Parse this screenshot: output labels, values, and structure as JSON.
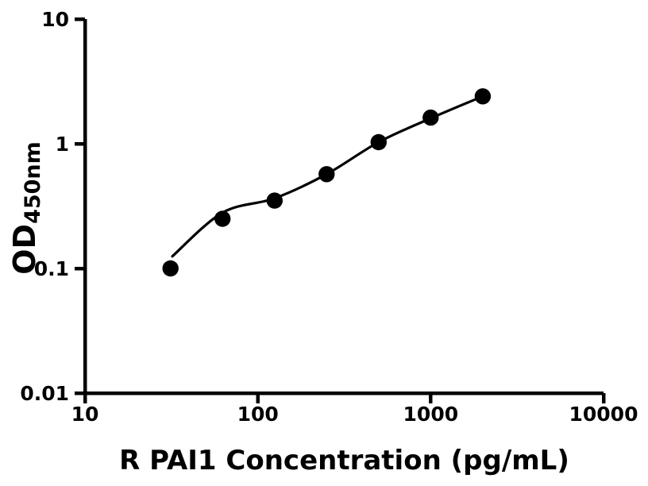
{
  "figure": {
    "background_color": "#ffffff",
    "foreground_color": "#000000"
  },
  "chart_data": {
    "type": "scatter",
    "title": "",
    "xlabel": "R PAI1 Concentration (pg/mL)",
    "ylabel_main": "OD",
    "ylabel_subscript": "450nm",
    "x_scale": "log",
    "y_scale": "log",
    "xlim": [
      10,
      10000
    ],
    "ylim": [
      0.01,
      10
    ],
    "grid": false,
    "legend": null,
    "x_ticks": [
      {
        "value": 10,
        "label": "10"
      },
      {
        "value": 100,
        "label": "100"
      },
      {
        "value": 1000,
        "label": "1000"
      },
      {
        "value": 10000,
        "label": "10000"
      }
    ],
    "y_ticks": [
      {
        "value": 10,
        "label": "10"
      },
      {
        "value": 1,
        "label": "1"
      },
      {
        "value": 0.1,
        "label": "0.1"
      },
      {
        "value": 0.01,
        "label": "0.01"
      }
    ],
    "series": [
      {
        "name": "standard-points",
        "kind": "scatter",
        "marker": "filled-circle",
        "color": "#000000",
        "x": [
          31.25,
          62.5,
          125,
          250,
          500,
          1000,
          2000
        ],
        "y": [
          0.1,
          0.25,
          0.35,
          0.57,
          1.03,
          1.62,
          2.4
        ]
      },
      {
        "name": "fit-curve",
        "kind": "line",
        "color": "#000000",
        "x": [
          32,
          62.5,
          125,
          250,
          500,
          1000,
          2000
        ],
        "y": [
          0.125,
          0.28,
          0.365,
          0.57,
          1.03,
          1.6,
          2.4
        ]
      }
    ]
  }
}
